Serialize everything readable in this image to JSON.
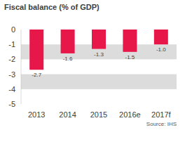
{
  "chart_data": {
    "type": "bar",
    "title": "Fiscal balance (% of GDP)",
    "categories": [
      "2013",
      "2014",
      "2015",
      "2016e",
      "2017f"
    ],
    "values": [
      -2.7,
      -1.6,
      -1.3,
      -1.5,
      -1.0
    ],
    "value_labels": [
      "-2.7",
      "-1.6",
      "-1.3",
      "-1.5",
      "-1.0"
    ],
    "color": "#e8174a",
    "ylim": [
      -5,
      0
    ],
    "yticks": [
      0,
      -1,
      -2,
      -3,
      -4,
      -5
    ],
    "grid": true,
    "data_labels": true,
    "source": "Source: IHS"
  }
}
